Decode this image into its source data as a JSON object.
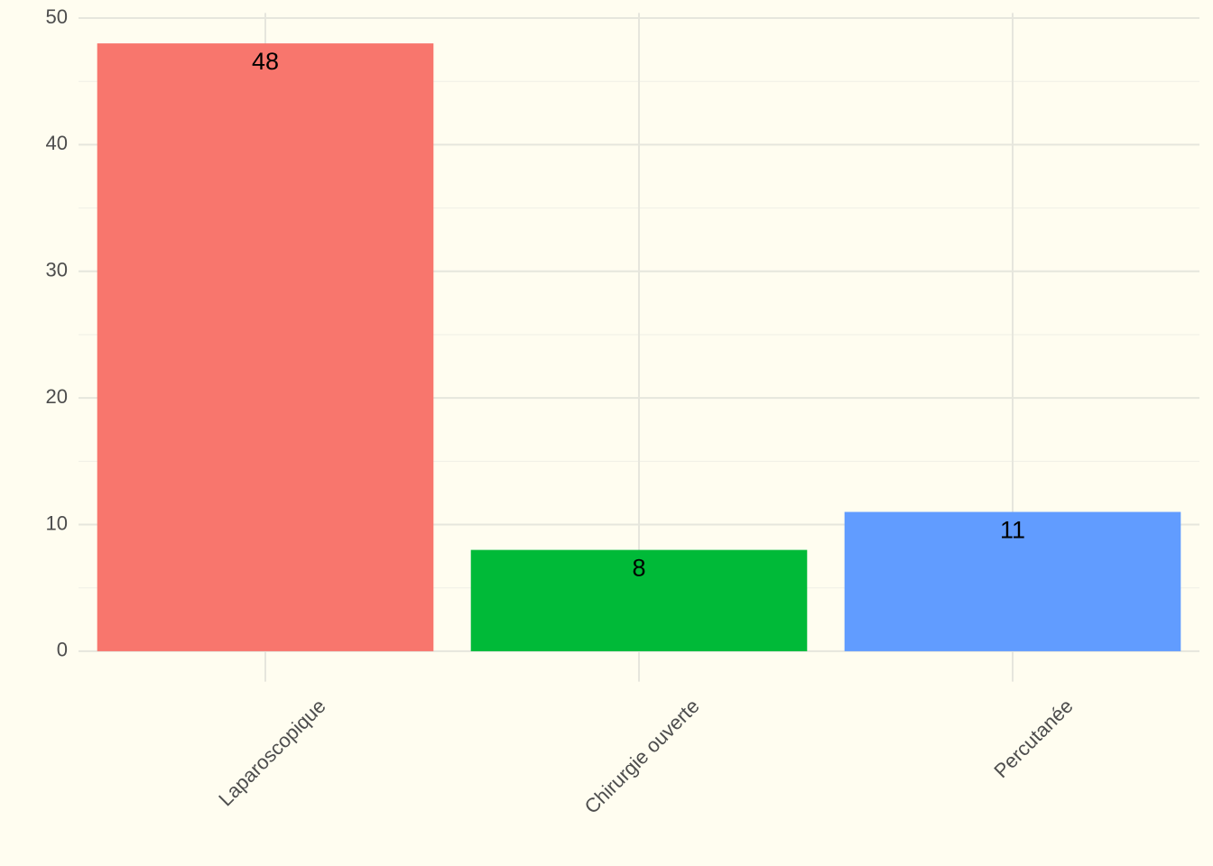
{
  "chart_data": {
    "type": "bar",
    "categories": [
      "Laparoscopique",
      "Chirurgie ouverte",
      "Percutanée"
    ],
    "values": [
      48,
      8,
      11
    ],
    "colors": [
      "#F8766D",
      "#00BA38",
      "#619CFF"
    ],
    "ylim": [
      -2.4,
      50.4
    ],
    "yticks": [
      0,
      10,
      20,
      30,
      40,
      50
    ],
    "y_minor_ticks": [
      5,
      15,
      25,
      35,
      45
    ],
    "grid": true
  }
}
